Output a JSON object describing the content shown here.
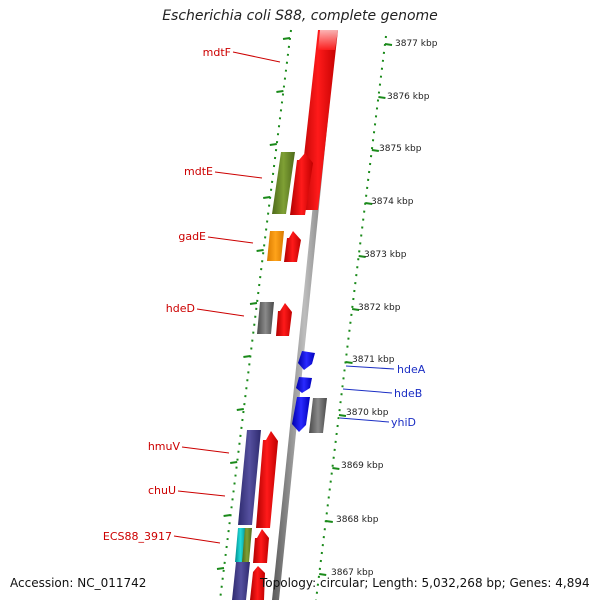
{
  "title": "Escherichia coli S88, complete genome",
  "footer": {
    "accession": "Accession: NC_011742",
    "summary": "Topology: circular; Length: 5,032,268 bp; Genes: 4,894"
  },
  "colors": {
    "forward_gene": "#ff0000",
    "reverse_gene": "#0000ee",
    "label_forward": "#cc0000",
    "label_reverse": "#1b2ec4",
    "backbone": "#808080",
    "tick": "#1a8a1a"
  },
  "scale_labels": [
    "3877 kbp",
    "3876 kbp",
    "3875 kbp",
    "3874 kbp",
    "3873 kbp",
    "3872 kbp",
    "3871 kbp",
    "3870 kbp",
    "3869 kbp",
    "3868 kbp",
    "3867 kbp"
  ],
  "gene_labels_left": [
    "mdtF",
    "mdtE",
    "gadE",
    "hdeD",
    "hmuV",
    "chuU",
    "ECS88_3917"
  ],
  "gene_labels_right": [
    "hdeA",
    "hdeB",
    "yhiD"
  ]
}
